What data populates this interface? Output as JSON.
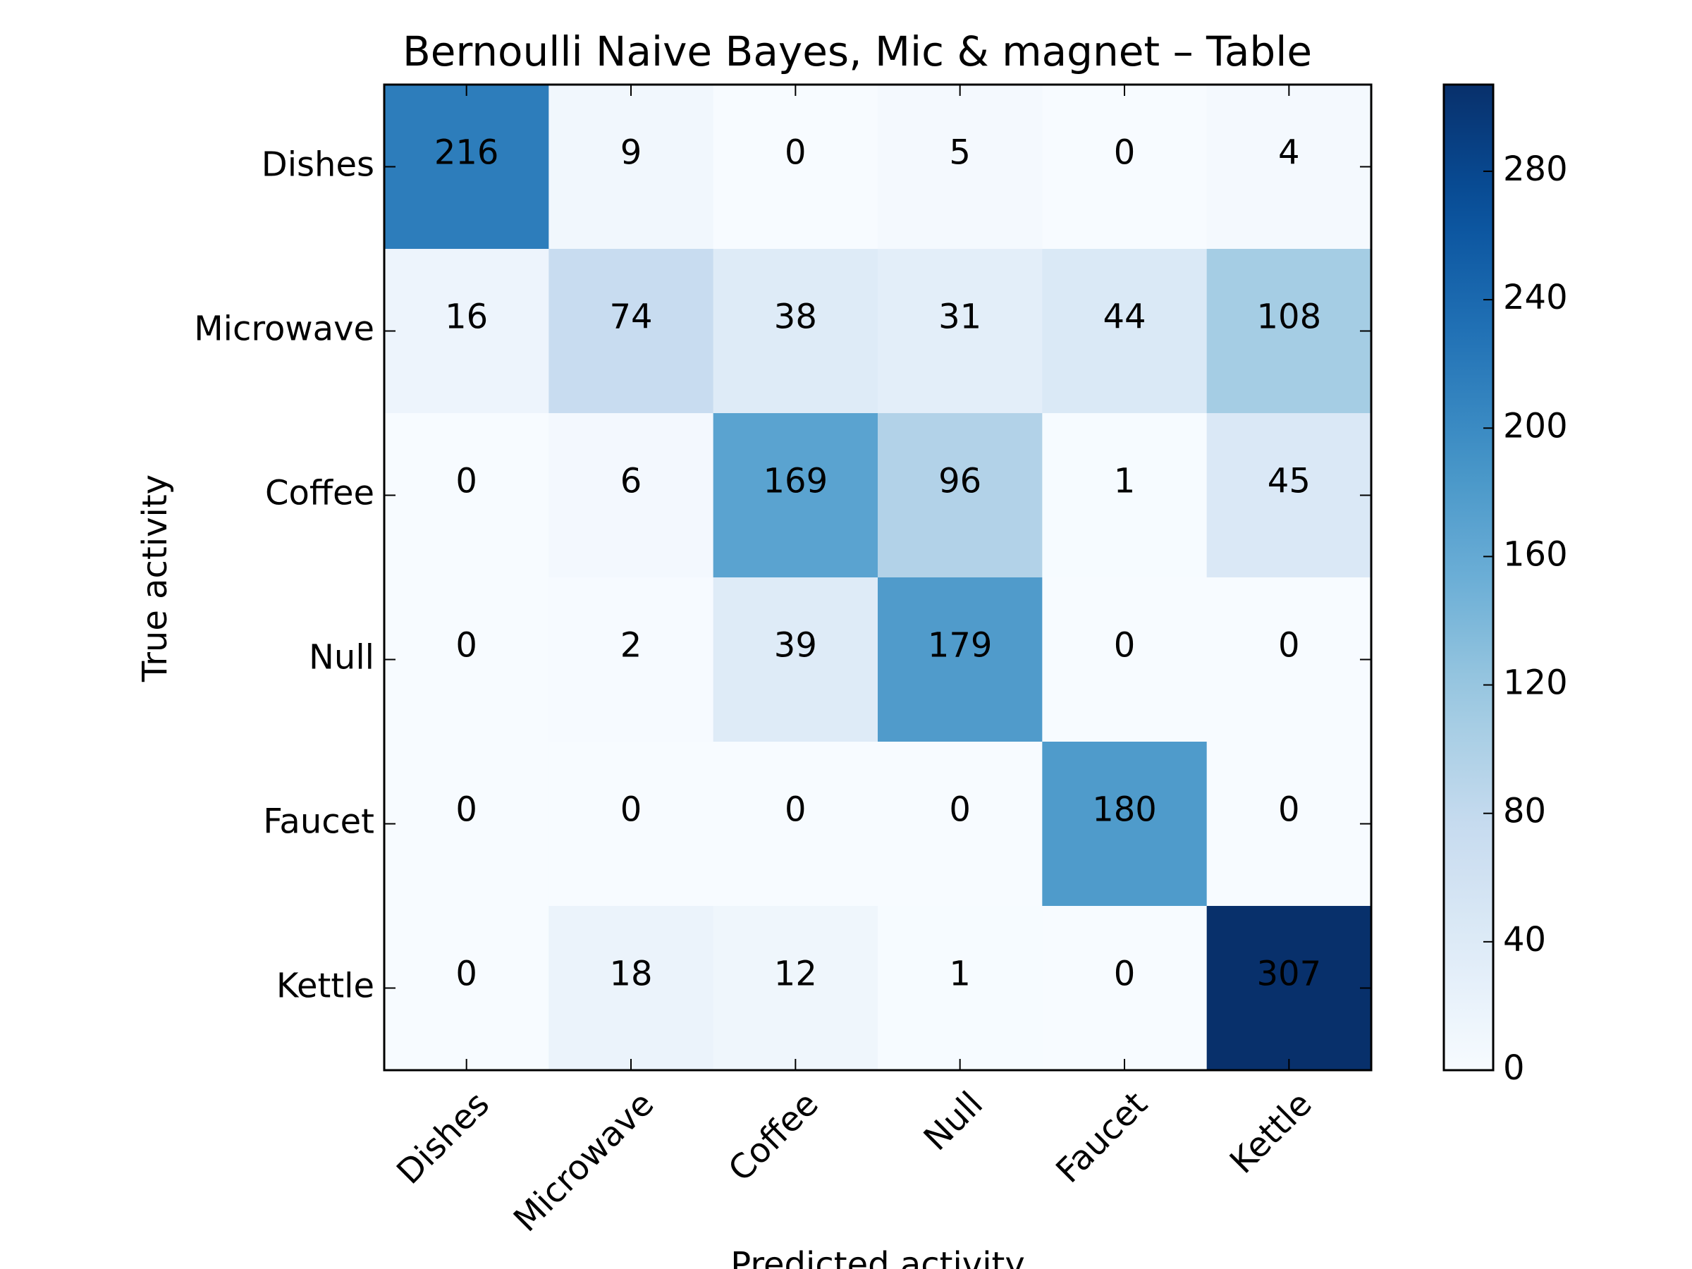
{
  "chart_data": {
    "type": "heatmap",
    "title": "Bernoulli Naive Bayes, Mic & magnet – Table",
    "xlabel": "Predicted activity",
    "ylabel": "True activity",
    "x_categories": [
      "Dishes",
      "Microwave",
      "Coffee",
      "Null",
      "Faucet",
      "Kettle"
    ],
    "y_categories": [
      "Dishes",
      "Microwave",
      "Coffee",
      "Null",
      "Faucet",
      "Kettle"
    ],
    "values": [
      [
        216,
        9,
        0,
        5,
        0,
        4
      ],
      [
        16,
        74,
        38,
        31,
        44,
        108
      ],
      [
        0,
        6,
        169,
        96,
        1,
        45
      ],
      [
        0,
        2,
        39,
        179,
        0,
        0
      ],
      [
        0,
        0,
        0,
        0,
        180,
        0
      ],
      [
        0,
        18,
        12,
        1,
        0,
        307
      ]
    ],
    "colormap": "Blues",
    "colorbar": {
      "range": [
        0,
        307
      ],
      "ticks": [
        0,
        40,
        80,
        120,
        160,
        200,
        240,
        280
      ]
    },
    "cell_text_colors": {
      "light": "#ffffff",
      "dark": "#000000"
    }
  }
}
